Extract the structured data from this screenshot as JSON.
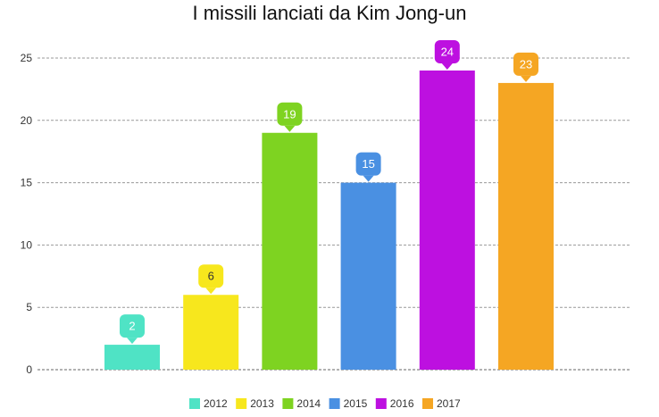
{
  "chart_data": {
    "type": "bar",
    "title": "I missili lanciati da Kim Jong-un",
    "categories": [
      "2012",
      "2013",
      "2014",
      "2015",
      "2016",
      "2017"
    ],
    "values": [
      2,
      6,
      19,
      15,
      24,
      23
    ],
    "colors": [
      "#4fe3c5",
      "#f7e71d",
      "#7ed321",
      "#4a90e2",
      "#bd10e0",
      "#f5a623"
    ],
    "label_text_colors": [
      "#ffffff",
      "#333333",
      "#ffffff",
      "#ffffff",
      "#ffffff",
      "#ffffff"
    ],
    "yticks": [
      0,
      5,
      10,
      15,
      20,
      25
    ],
    "ylim": [
      0,
      25
    ],
    "grid": true,
    "legend": "bottom",
    "xlabel": "",
    "ylabel": ""
  }
}
